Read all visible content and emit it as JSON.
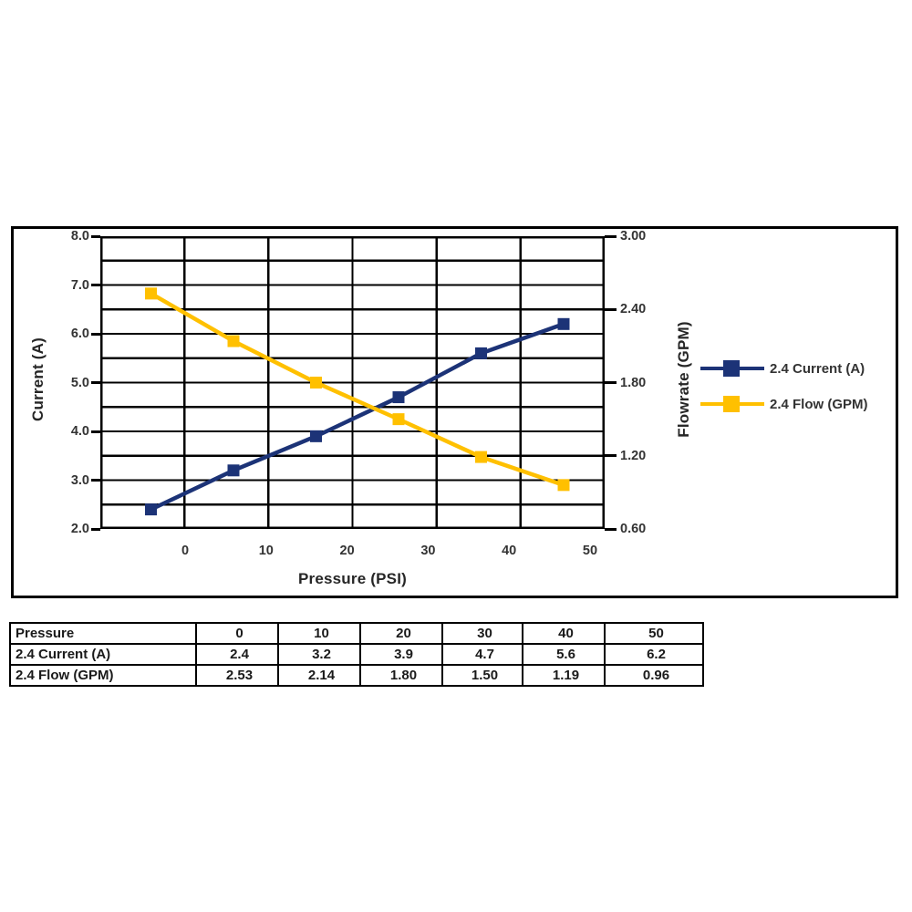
{
  "chart": {
    "left_axis": {
      "title": "Current (A)",
      "ticks": [
        "8.0",
        "7.0",
        "6.0",
        "5.0",
        "4.0",
        "3.0",
        "2.0"
      ]
    },
    "right_axis": {
      "title": "Flowrate (GPM)",
      "ticks": [
        "3.00",
        "2.40",
        "1.80",
        "1.20",
        "0.60"
      ]
    },
    "x_axis": {
      "title": "Pressure (PSI)",
      "ticks": [
        "0",
        "10",
        "20",
        "30",
        "40",
        "50"
      ]
    },
    "legend": [
      {
        "label": "2.4 Current (A)",
        "color": "#1c3377"
      },
      {
        "label": "2.4 Flow (GPM)",
        "color": "#ffc000"
      }
    ]
  },
  "chart_data": {
    "type": "line",
    "categories": [
      0,
      10,
      20,
      30,
      40,
      50
    ],
    "series": [
      {
        "name": "2.4 Current (A)",
        "axis": "left",
        "color": "#1c3377",
        "values": [
          2.4,
          3.2,
          3.9,
          4.7,
          5.6,
          6.2
        ]
      },
      {
        "name": "2.4 Flow (GPM)",
        "axis": "right",
        "color": "#ffc000",
        "values": [
          2.53,
          2.14,
          1.8,
          1.5,
          1.19,
          0.96
        ]
      }
    ],
    "title": "",
    "xlabel": "Pressure (PSI)",
    "ylabel_left": "Current (A)",
    "ylabel_right": "Flowrate (GPM)",
    "ylim_left": [
      2.0,
      8.0
    ],
    "ylim_right": [
      0.6,
      3.0
    ],
    "grid": true,
    "gridline_step_left": 0.5,
    "legend_position": "right"
  },
  "table": {
    "header": [
      "Pressure",
      "0",
      "10",
      "20",
      "30",
      "40",
      "50"
    ],
    "rows": [
      [
        "2.4 Current (A)",
        "2.4",
        "3.2",
        "3.9",
        "4.7",
        "5.6",
        "6.2"
      ],
      [
        "2.4 Flow (GPM)",
        "2.53",
        "2.14",
        "1.80",
        "1.50",
        "1.19",
        "0.96"
      ]
    ]
  }
}
